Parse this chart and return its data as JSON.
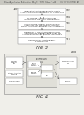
{
  "bg_color": "#f0efea",
  "header_color": "#c8c7c0",
  "header_text": "Patent Application Publication   May 24, 2012   Sheet 2 of 4        US 2012/0130448 A1",
  "box_color": "#ffffff",
  "box_border": "#888888",
  "arrow_color": "#555555",
  "text_color": "#333333",
  "fig3_label": "FIG. 3",
  "fig4_label": "FIG. 4",
  "fig3_boxes": [
    "RECEIVE AN ATRIAL ELECTROGRAM SIGNAL\nAND PACING INFORMATION FROM THE CRM DEVICE",
    "DETERMINE ALL RELEVANT PACED\nCOMPLEXES IN THE ATRIAL ELECTROGRAM",
    "CALCULATE THE AVERAGE PACER ARTIFACT\nAMPLITUDE AND THE AVERAGE INTRINSIC\nP-WAVE AMPLITUDE FROM THE PACED COMPLEXES",
    "DETERMINE IF THE PATIENT IS EXHIBITING\nCHRONOTROPIC INCOMPETENCE BASED ON\nA COMPARISON OF THE AVERAGE AMPLITUDES",
    "PROVIDE OUTPUT INDICATIVE OF THE\nCHRONOTROPIC INCOMPETENCE\nDETERMINATION"
  ],
  "fig3_ref_labels": [
    "102",
    "104",
    "106",
    "108",
    "110"
  ],
  "fig3_start_ref": "100",
  "fig4_ref": "200"
}
